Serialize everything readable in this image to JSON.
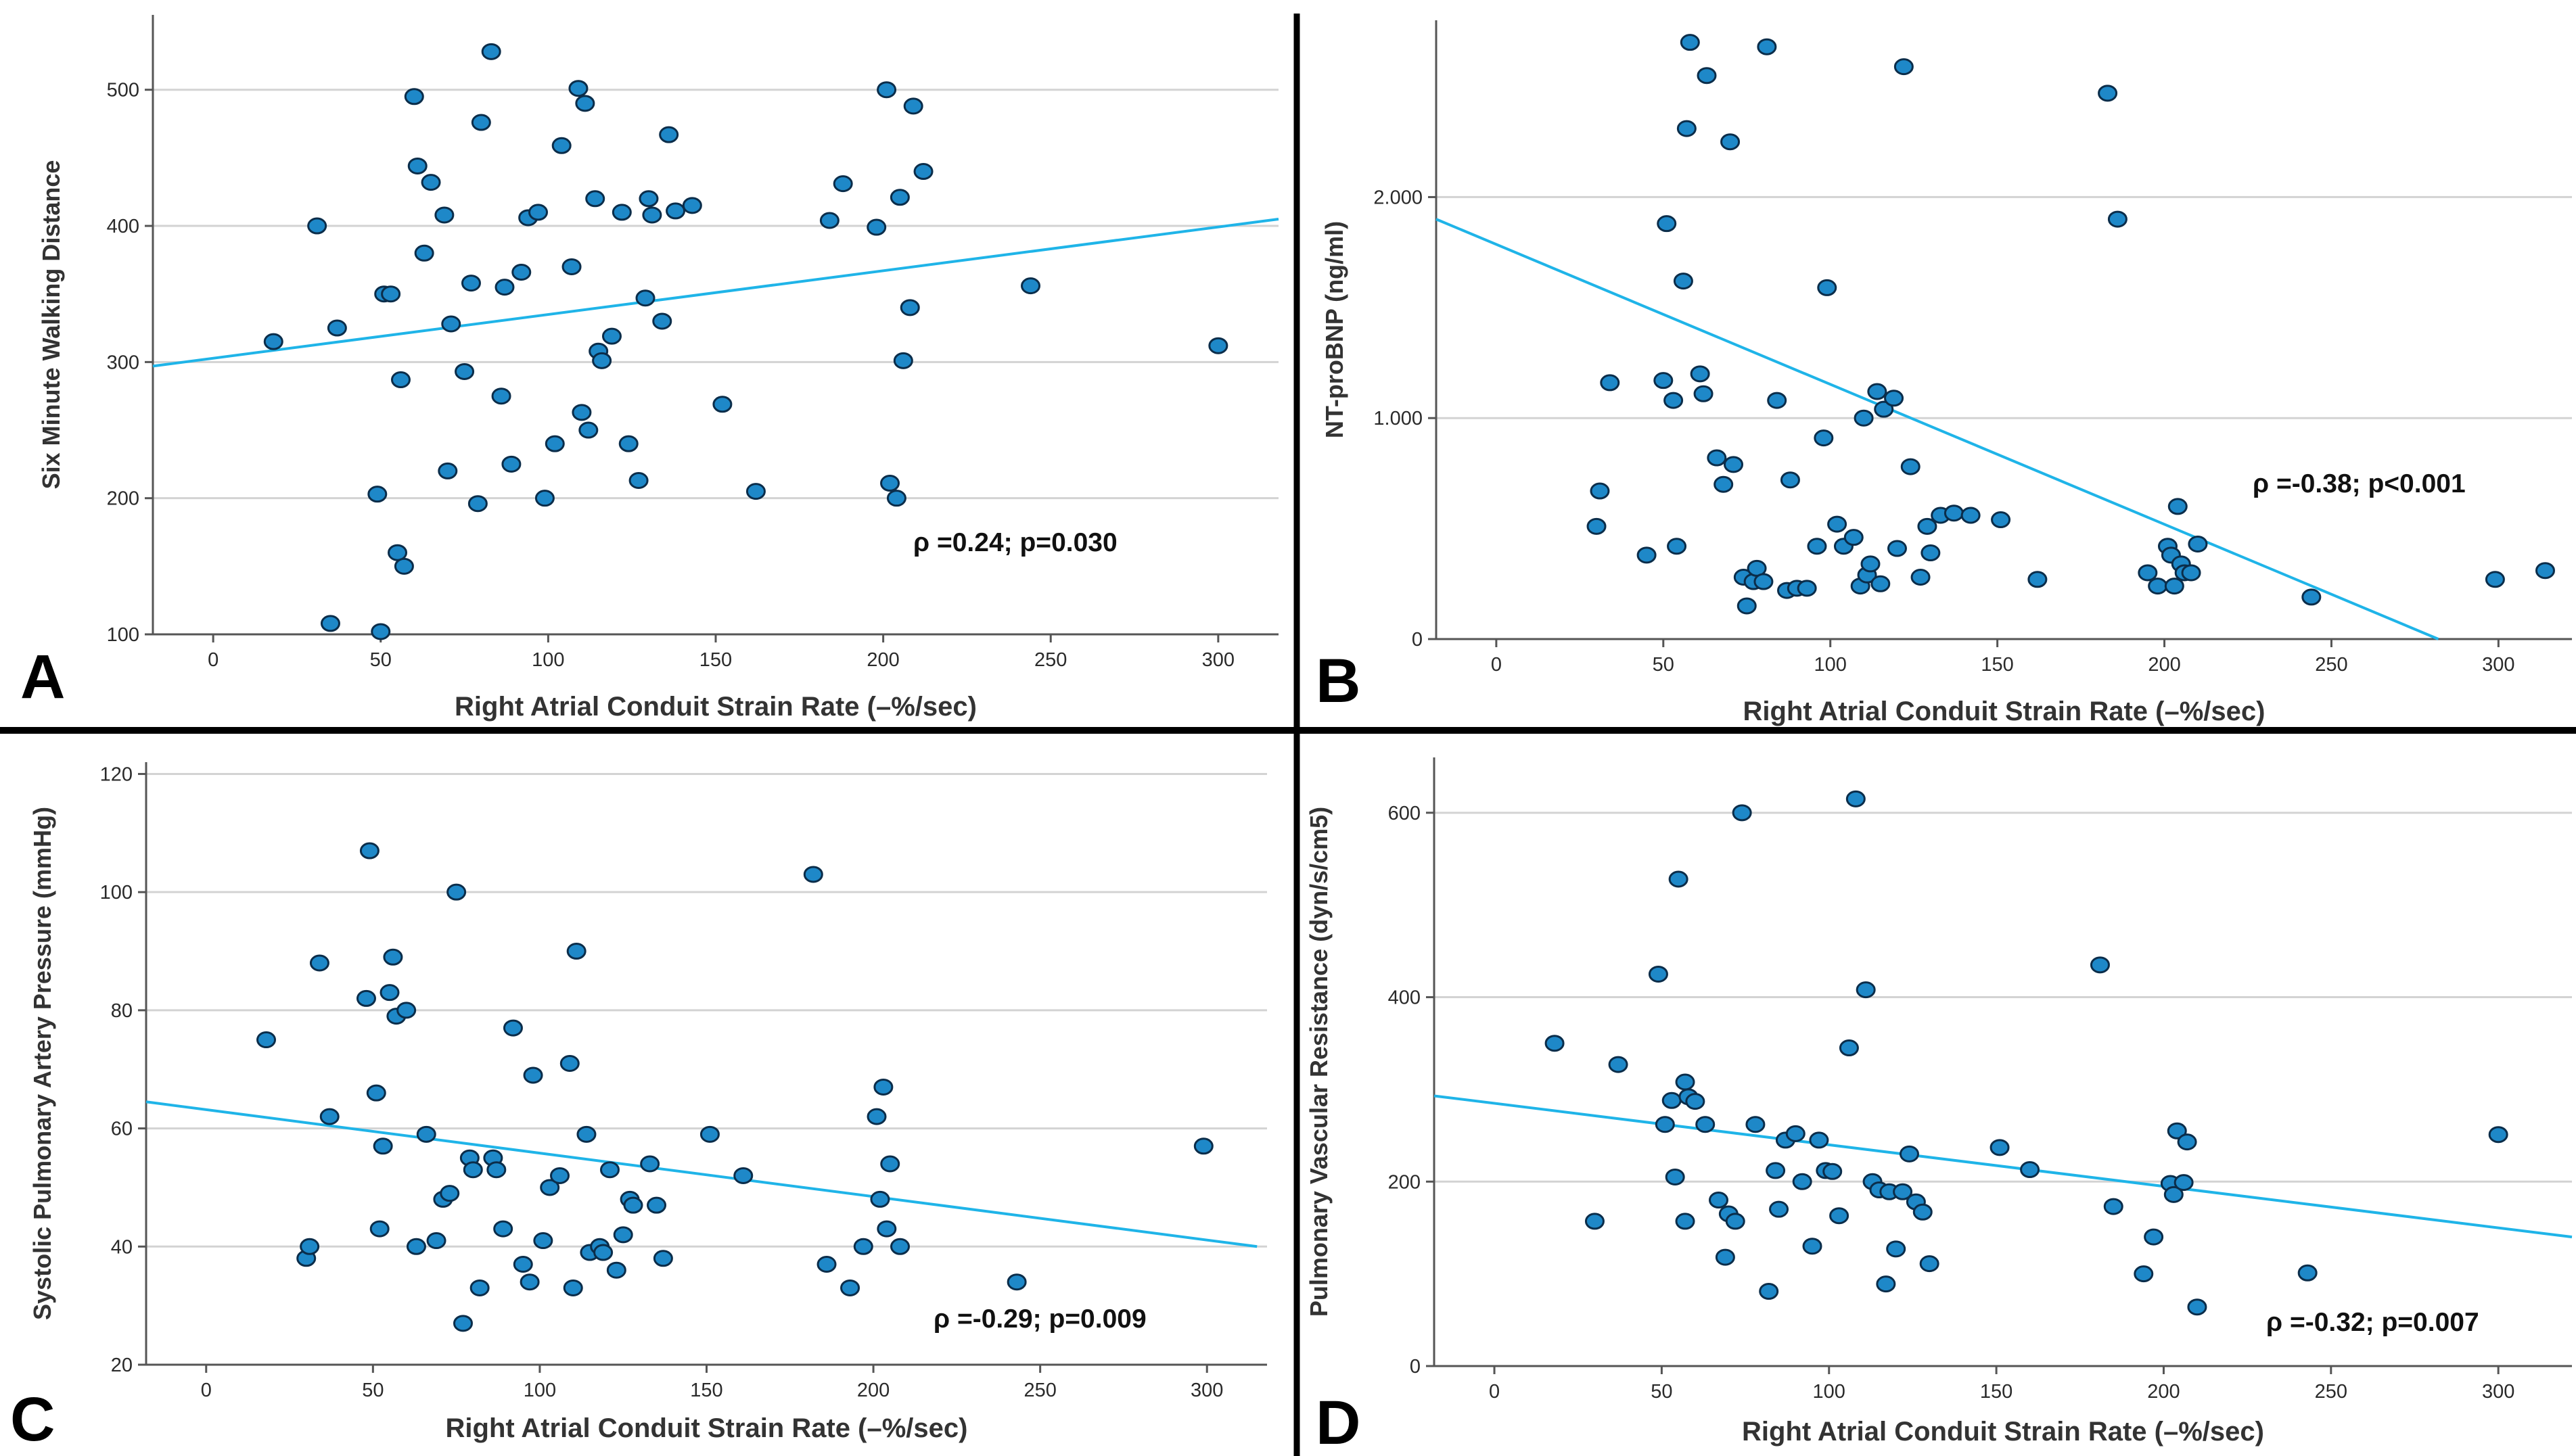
{
  "colors": {
    "fit_line": "#1fb4e8",
    "point_fill": "#1e88c8",
    "point_stroke": "#0b2d4a",
    "grid": "#d3d3d3",
    "axis": "#555555",
    "divider": "#000000"
  },
  "chart_data": [
    {
      "type": "scatter",
      "panel_label": "A",
      "xlabel": "Right Atrial Conduit Strain Rate (–%/sec)",
      "ylabel": "Six Minute Walking Distance",
      "xlim": [
        -18,
        318
      ],
      "ylim": [
        100,
        555
      ],
      "xticks": [
        "0",
        "50",
        "100",
        "150",
        "200",
        "250",
        "300"
      ],
      "xtick_values": [
        0,
        50,
        100,
        150,
        200,
        250,
        300
      ],
      "yticks": [
        "100",
        "200",
        "300",
        "400",
        "500"
      ],
      "ytick_values": [
        100,
        200,
        300,
        400,
        500
      ],
      "annotation": "ρ =0.24; p=0.030",
      "regression": {
        "x": [
          -18,
          318
        ],
        "y": [
          297,
          405
        ]
      },
      "points": [
        [
          18,
          315
        ],
        [
          31,
          400
        ],
        [
          35,
          108
        ],
        [
          37,
          325
        ],
        [
          49,
          203
        ],
        [
          50,
          102
        ],
        [
          51,
          350
        ],
        [
          53,
          350
        ],
        [
          55,
          160
        ],
        [
          56,
          287
        ],
        [
          57,
          150
        ],
        [
          60,
          495
        ],
        [
          61,
          444
        ],
        [
          63,
          380
        ],
        [
          65,
          432
        ],
        [
          69,
          408
        ],
        [
          70,
          220
        ],
        [
          71,
          328
        ],
        [
          75,
          293
        ],
        [
          77,
          358
        ],
        [
          79,
          196
        ],
        [
          80,
          476
        ],
        [
          83,
          528
        ],
        [
          86,
          275
        ],
        [
          87,
          355
        ],
        [
          89,
          225
        ],
        [
          92,
          366
        ],
        [
          94,
          406
        ],
        [
          97,
          410
        ],
        [
          99,
          200
        ],
        [
          102,
          240
        ],
        [
          104,
          459
        ],
        [
          107,
          370
        ],
        [
          109,
          501
        ],
        [
          110,
          263
        ],
        [
          111,
          490
        ],
        [
          112,
          250
        ],
        [
          114,
          420
        ],
        [
          115,
          308
        ],
        [
          116,
          301
        ],
        [
          119,
          319
        ],
        [
          122,
          410
        ],
        [
          124,
          240
        ],
        [
          127,
          213
        ],
        [
          129,
          347
        ],
        [
          130,
          420
        ],
        [
          131,
          408
        ],
        [
          134,
          330
        ],
        [
          136,
          467
        ],
        [
          138,
          411
        ],
        [
          143,
          415
        ],
        [
          152,
          269
        ],
        [
          162,
          205
        ],
        [
          184,
          404
        ],
        [
          188,
          431
        ],
        [
          198,
          399
        ],
        [
          201,
          500
        ],
        [
          202,
          211
        ],
        [
          204,
          200
        ],
        [
          205,
          421
        ],
        [
          206,
          301
        ],
        [
          208,
          340
        ],
        [
          209,
          488
        ],
        [
          212,
          440
        ],
        [
          244,
          356
        ],
        [
          300,
          312
        ]
      ]
    },
    {
      "type": "scatter",
      "panel_label": "B",
      "xlabel": "Right Atrial Conduit Strain Rate (–%/sec)",
      "ylabel": "NT-proBNP (ng/ml)",
      "xlim": [
        -18,
        322
      ],
      "ylim": [
        0,
        2800
      ],
      "xticks": [
        "0",
        "50",
        "100",
        "150",
        "200",
        "250",
        "300"
      ],
      "xtick_values": [
        0,
        50,
        100,
        150,
        200,
        250,
        300
      ],
      "yticks": [
        "0",
        "1.000",
        "2.000"
      ],
      "ytick_values": [
        0,
        1000,
        2000
      ],
      "annotation": "ρ =-0.38; p<0.001",
      "regression": {
        "x": [
          -18,
          282
        ],
        "y": [
          1900,
          0
        ]
      },
      "points": [
        [
          30,
          510
        ],
        [
          31,
          670
        ],
        [
          34,
          1160
        ],
        [
          45,
          380
        ],
        [
          50,
          1170
        ],
        [
          51,
          1880
        ],
        [
          53,
          1080
        ],
        [
          54,
          420
        ],
        [
          56,
          1620
        ],
        [
          57,
          2310
        ],
        [
          58,
          2700
        ],
        [
          61,
          1200
        ],
        [
          62,
          1110
        ],
        [
          63,
          2550
        ],
        [
          66,
          820
        ],
        [
          68,
          700
        ],
        [
          70,
          2250
        ],
        [
          71,
          790
        ],
        [
          74,
          280
        ],
        [
          75,
          150
        ],
        [
          77,
          260
        ],
        [
          78,
          320
        ],
        [
          80,
          260
        ],
        [
          81,
          2680
        ],
        [
          84,
          1080
        ],
        [
          87,
          220
        ],
        [
          88,
          720
        ],
        [
          90,
          230
        ],
        [
          93,
          230
        ],
        [
          96,
          420
        ],
        [
          98,
          910
        ],
        [
          99,
          1590
        ],
        [
          102,
          520
        ],
        [
          104,
          420
        ],
        [
          107,
          460
        ],
        [
          109,
          240
        ],
        [
          110,
          1000
        ],
        [
          111,
          290
        ],
        [
          112,
          340
        ],
        [
          114,
          1120
        ],
        [
          115,
          250
        ],
        [
          116,
          1040
        ],
        [
          119,
          1090
        ],
        [
          120,
          410
        ],
        [
          122,
          2590
        ],
        [
          124,
          780
        ],
        [
          127,
          280
        ],
        [
          129,
          510
        ],
        [
          130,
          390
        ],
        [
          133,
          560
        ],
        [
          137,
          570
        ],
        [
          142,
          560
        ],
        [
          151,
          540
        ],
        [
          162,
          270
        ],
        [
          183,
          2470
        ],
        [
          186,
          1900
        ],
        [
          195,
          300
        ],
        [
          198,
          240
        ],
        [
          201,
          420
        ],
        [
          202,
          380
        ],
        [
          203,
          240
        ],
        [
          204,
          600
        ],
        [
          205,
          340
        ],
        [
          206,
          300
        ],
        [
          208,
          300
        ],
        [
          210,
          430
        ],
        [
          244,
          190
        ],
        [
          299,
          270
        ],
        [
          314,
          310
        ]
      ]
    },
    {
      "type": "scatter",
      "panel_label": "C",
      "xlabel": "Right Atrial Conduit Strain Rate (–%/sec)",
      "ylabel": "Systolic Pulmonary Artery Pressure (mmHg)",
      "xlim": [
        -18,
        318
      ],
      "ylim": [
        20,
        122
      ],
      "xticks": [
        "0",
        "50",
        "100",
        "150",
        "200",
        "250",
        "300"
      ],
      "xtick_values": [
        0,
        50,
        100,
        150,
        200,
        250,
        300
      ],
      "yticks": [
        "20",
        "40",
        "60",
        "80",
        "100",
        "120"
      ],
      "ytick_values": [
        20,
        40,
        60,
        80,
        100,
        120
      ],
      "annotation": "ρ =-0.29; p=0.009",
      "regression": {
        "x": [
          -18,
          315
        ],
        "y": [
          64.5,
          40
        ]
      },
      "points": [
        [
          18,
          75
        ],
        [
          30,
          38
        ],
        [
          31,
          40
        ],
        [
          34,
          88
        ],
        [
          37,
          62
        ],
        [
          48,
          82
        ],
        [
          49,
          107
        ],
        [
          51,
          66
        ],
        [
          52,
          43
        ],
        [
          53,
          57
        ],
        [
          55,
          83
        ],
        [
          56,
          89
        ],
        [
          57,
          79
        ],
        [
          60,
          80
        ],
        [
          63,
          40
        ],
        [
          66,
          59
        ],
        [
          69,
          41
        ],
        [
          71,
          48
        ],
        [
          73,
          49
        ],
        [
          75,
          100
        ],
        [
          77,
          27
        ],
        [
          79,
          55
        ],
        [
          80,
          53
        ],
        [
          82,
          33
        ],
        [
          86,
          55
        ],
        [
          87,
          53
        ],
        [
          89,
          43
        ],
        [
          92,
          77
        ],
        [
          95,
          37
        ],
        [
          97,
          34
        ],
        [
          98,
          69
        ],
        [
          101,
          41
        ],
        [
          103,
          50
        ],
        [
          106,
          52
        ],
        [
          109,
          71
        ],
        [
          110,
          33
        ],
        [
          111,
          90
        ],
        [
          114,
          59
        ],
        [
          115,
          39
        ],
        [
          118,
          40
        ],
        [
          119,
          39
        ],
        [
          121,
          53
        ],
        [
          123,
          36
        ],
        [
          125,
          42
        ],
        [
          127,
          48
        ],
        [
          128,
          47
        ],
        [
          133,
          54
        ],
        [
          135,
          47
        ],
        [
          137,
          38
        ],
        [
          151,
          59
        ],
        [
          161,
          52
        ],
        [
          182,
          103
        ],
        [
          186,
          37
        ],
        [
          193,
          33
        ],
        [
          197,
          40
        ],
        [
          201,
          62
        ],
        [
          202,
          48
        ],
        [
          203,
          67
        ],
        [
          204,
          43
        ],
        [
          205,
          54
        ],
        [
          208,
          40
        ],
        [
          243,
          34
        ],
        [
          299,
          57
        ]
      ]
    },
    {
      "type": "scatter",
      "panel_label": "D",
      "xlabel": "Right Atrial Conduit Strain Rate (–%/sec)",
      "ylabel": "Pulmonary Vascular Resistance (dyn/s/cm5)",
      "xlim": [
        -18,
        322
      ],
      "ylim": [
        0,
        660
      ],
      "xticks": [
        "0",
        "50",
        "100",
        "150",
        "200",
        "250",
        "300"
      ],
      "xtick_values": [
        0,
        50,
        100,
        150,
        200,
        250,
        300
      ],
      "yticks": [
        "0",
        "200",
        "400",
        "600"
      ],
      "ytick_values": [
        0,
        200,
        400,
        600
      ],
      "annotation": "ρ =-0.32; p=0.007",
      "regression": {
        "x": [
          -18,
          322
        ],
        "y": [
          293,
          140
        ]
      },
      "points": [
        [
          18,
          350
        ],
        [
          30,
          157
        ],
        [
          37,
          327
        ],
        [
          49,
          425
        ],
        [
          51,
          262
        ],
        [
          53,
          288
        ],
        [
          54,
          205
        ],
        [
          55,
          528
        ],
        [
          57,
          308
        ],
        [
          57,
          157
        ],
        [
          58,
          292
        ],
        [
          60,
          287
        ],
        [
          63,
          262
        ],
        [
          67,
          180
        ],
        [
          69,
          118
        ],
        [
          70,
          165
        ],
        [
          72,
          157
        ],
        [
          74,
          600
        ],
        [
          78,
          262
        ],
        [
          82,
          81
        ],
        [
          84,
          212
        ],
        [
          85,
          170
        ],
        [
          87,
          245
        ],
        [
          90,
          252
        ],
        [
          92,
          200
        ],
        [
          95,
          130
        ],
        [
          97,
          245
        ],
        [
          99,
          212
        ],
        [
          101,
          211
        ],
        [
          103,
          163
        ],
        [
          106,
          345
        ],
        [
          108,
          615
        ],
        [
          111,
          408
        ],
        [
          113,
          200
        ],
        [
          115,
          191
        ],
        [
          117,
          89
        ],
        [
          118,
          189
        ],
        [
          120,
          127
        ],
        [
          122,
          189
        ],
        [
          124,
          230
        ],
        [
          126,
          178
        ],
        [
          128,
          167
        ],
        [
          130,
          111
        ],
        [
          151,
          237
        ],
        [
          160,
          213
        ],
        [
          181,
          435
        ],
        [
          185,
          173
        ],
        [
          194,
          100
        ],
        [
          197,
          140
        ],
        [
          202,
          198
        ],
        [
          203,
          186
        ],
        [
          204,
          255
        ],
        [
          206,
          199
        ],
        [
          207,
          243
        ],
        [
          210,
          64
        ],
        [
          243,
          101
        ],
        [
          300,
          251
        ]
      ]
    }
  ]
}
